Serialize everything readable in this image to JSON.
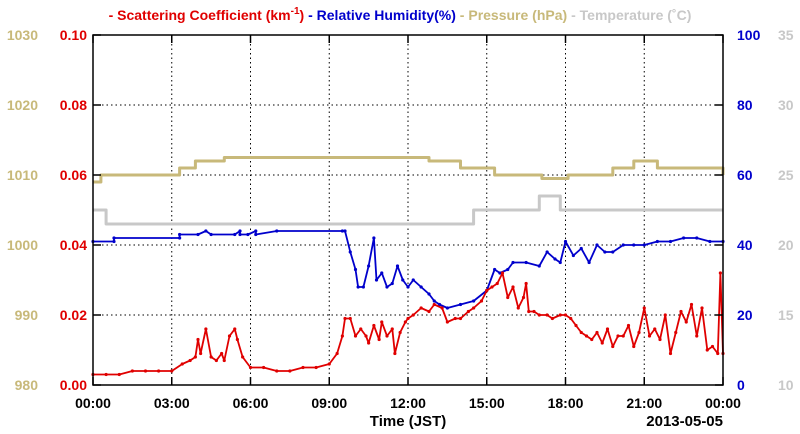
{
  "chart_data": {
    "type": "line",
    "legend": [
      {
        "dash": "-",
        "text": "Scattering Coefficient (km",
        "sup": "-1",
        "tail": ")",
        "color": "#e00000"
      },
      {
        "dash": "-",
        "text": "Relative Humidity(%)",
        "color": "#0000cc"
      },
      {
        "dash": "-",
        "text": "Pressure (hPa)",
        "color": "#c8b97a"
      },
      {
        "dash": "-",
        "text": "Temperature (˚C)",
        "color": "#c8c8c8"
      }
    ],
    "xlabel": "Time (JST)",
    "date_label": "2013-05-05",
    "x_ticks": [
      "00:00",
      "03:00",
      "06:00",
      "09:00",
      "12:00",
      "15:00",
      "18:00",
      "21:00",
      "00:00"
    ],
    "x_unit": "hours",
    "xlim": [
      0,
      24
    ],
    "grid": true,
    "axes": {
      "pressure": {
        "side": "left-outer",
        "ylim": [
          980,
          1030
        ],
        "ticks": [
          "980",
          "990",
          "1000",
          "1010",
          "1020",
          "1030"
        ],
        "color": "#c8b97a"
      },
      "scattering": {
        "side": "left-inner",
        "ylim": [
          0,
          0.1
        ],
        "ticks": [
          "0.00",
          "0.02",
          "0.04",
          "0.06",
          "0.08",
          "0.10"
        ],
        "color": "#e00000"
      },
      "humidity": {
        "side": "right-inner",
        "ylim": [
          0,
          100
        ],
        "ticks": [
          "0",
          "20",
          "40",
          "60",
          "80",
          "100"
        ],
        "color": "#0000cc"
      },
      "temperature": {
        "side": "right-outer",
        "ylim": [
          10,
          35
        ],
        "ticks": [
          "10",
          "15",
          "20",
          "25",
          "30",
          "35"
        ],
        "color": "#c8c8c8"
      }
    },
    "series": [
      {
        "name": "Pressure (hPa)",
        "axis": "pressure",
        "step": true,
        "color": "#c8b97a",
        "width": 3,
        "x": [
          0,
          0.3,
          3.3,
          3.9,
          5.0,
          8.5,
          12.8,
          14.0,
          15.3,
          17.1,
          18.1,
          19.8,
          20.6,
          21.5,
          24
        ],
        "y": [
          1009,
          1010,
          1011,
          1012,
          1012.5,
          1012.5,
          1012,
          1011,
          1010,
          1009.5,
          1010,
          1011,
          1012,
          1011,
          1010
        ]
      },
      {
        "name": "Temperature (˚C)",
        "axis": "temperature",
        "step": true,
        "color": "#c8c8c8",
        "width": 3,
        "x": [
          0,
          0.5,
          13.5,
          14.5,
          15.0,
          17.0,
          17.8,
          24
        ],
        "y": [
          22.5,
          21.5,
          21.5,
          22.5,
          22.5,
          23.5,
          22.5,
          22.5
        ]
      },
      {
        "name": "Relative Humidity(%)",
        "axis": "humidity",
        "step": false,
        "color": "#0000cc",
        "width": 1.8,
        "x": [
          0.0,
          0.8,
          0.8,
          3.3,
          3.3,
          4.0,
          4.3,
          4.5,
          5.4,
          5.6,
          5.6,
          5.9,
          6.2,
          6.2,
          7.0,
          9.5,
          9.6,
          9.8,
          10.0,
          10.1,
          10.3,
          10.5,
          10.7,
          10.8,
          11.0,
          11.2,
          11.4,
          11.6,
          11.8,
          12.0,
          12.2,
          12.5,
          12.8,
          13.0,
          13.2,
          13.5,
          14.0,
          14.5,
          15.0,
          15.3,
          15.5,
          15.8,
          16.0,
          16.5,
          17.0,
          17.3,
          17.6,
          17.8,
          18.0,
          18.3,
          18.6,
          18.9,
          19.2,
          19.5,
          19.8,
          20.2,
          20.6,
          21.0,
          21.5,
          22.0,
          22.5,
          23.0,
          23.5,
          24.0
        ],
        "y": [
          41,
          41,
          42,
          42,
          43,
          43,
          44,
          43,
          43,
          44,
          43,
          43,
          44,
          43,
          44,
          44,
          44,
          38,
          33,
          28,
          28,
          34,
          42,
          30,
          32,
          28,
          29,
          34,
          30,
          28,
          30,
          28,
          26,
          24,
          23,
          22,
          23,
          24,
          27,
          33,
          32,
          33,
          35,
          35,
          34,
          38,
          36,
          35,
          41,
          37,
          39,
          35,
          40,
          38,
          38,
          40,
          40,
          40,
          41,
          41,
          42,
          42,
          41,
          41
        ]
      },
      {
        "name": "Scattering Coefficient (km-1)",
        "axis": "scattering",
        "step": false,
        "color": "#e00000",
        "width": 1.8,
        "x": [
          0.0,
          0.5,
          1.0,
          1.5,
          2.0,
          2.5,
          3.0,
          3.4,
          3.7,
          3.9,
          4.0,
          4.1,
          4.3,
          4.5,
          4.7,
          4.9,
          5.0,
          5.2,
          5.4,
          5.5,
          5.7,
          6.0,
          6.5,
          7.0,
          7.5,
          8.0,
          8.5,
          9.0,
          9.3,
          9.5,
          9.6,
          9.8,
          10.0,
          10.2,
          10.4,
          10.5,
          10.7,
          10.9,
          11.0,
          11.2,
          11.4,
          11.5,
          11.7,
          11.9,
          12.0,
          12.2,
          12.5,
          12.8,
          13.0,
          13.3,
          13.5,
          13.8,
          14.0,
          14.3,
          14.5,
          14.8,
          15.0,
          15.2,
          15.4,
          15.6,
          15.8,
          16.0,
          16.2,
          16.4,
          16.5,
          16.6,
          16.8,
          17.0,
          17.3,
          17.5,
          17.8,
          18.0,
          18.2,
          18.4,
          18.6,
          18.8,
          19.0,
          19.2,
          19.4,
          19.6,
          19.8,
          20.0,
          20.2,
          20.4,
          20.6,
          20.8,
          21.0,
          21.2,
          21.4,
          21.6,
          21.8,
          22.0,
          22.2,
          22.4,
          22.6,
          22.8,
          23.0,
          23.2,
          23.4,
          23.6,
          23.8,
          23.9,
          24.0
        ],
        "y": [
          0.003,
          0.003,
          0.003,
          0.004,
          0.004,
          0.004,
          0.004,
          0.006,
          0.007,
          0.008,
          0.013,
          0.009,
          0.016,
          0.008,
          0.007,
          0.009,
          0.007,
          0.014,
          0.016,
          0.013,
          0.008,
          0.005,
          0.005,
          0.004,
          0.004,
          0.005,
          0.005,
          0.006,
          0.009,
          0.014,
          0.019,
          0.019,
          0.014,
          0.016,
          0.014,
          0.012,
          0.017,
          0.013,
          0.018,
          0.014,
          0.016,
          0.009,
          0.015,
          0.018,
          0.019,
          0.02,
          0.022,
          0.021,
          0.023,
          0.022,
          0.018,
          0.019,
          0.019,
          0.021,
          0.022,
          0.024,
          0.027,
          0.028,
          0.029,
          0.032,
          0.025,
          0.028,
          0.022,
          0.025,
          0.029,
          0.021,
          0.021,
          0.02,
          0.02,
          0.019,
          0.02,
          0.02,
          0.019,
          0.017,
          0.015,
          0.014,
          0.013,
          0.015,
          0.012,
          0.016,
          0.011,
          0.014,
          0.014,
          0.017,
          0.011,
          0.015,
          0.022,
          0.014,
          0.016,
          0.013,
          0.02,
          0.009,
          0.015,
          0.021,
          0.018,
          0.023,
          0.014,
          0.022,
          0.01,
          0.011,
          0.009,
          0.032,
          0.009
        ]
      }
    ]
  }
}
